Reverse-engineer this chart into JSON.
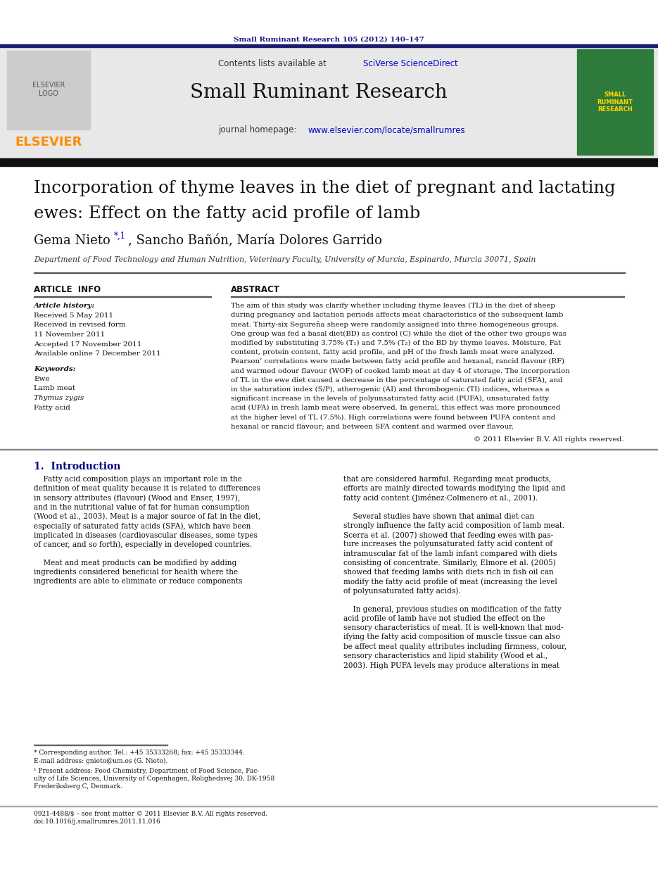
{
  "journal_citation": "Small Ruminant Research 105 (2012) 140–147",
  "journal_name": "Small Ruminant Research",
  "elsevier_text": "ELSEVIER",
  "article_title_line1": "Incorporation of thyme leaves in the diet of pregnant and lactating",
  "article_title_line2": "ewes: Effect on the fatty acid profile of lamb",
  "article_history_label": "Article history:",
  "received_1": "Received 5 May 2011",
  "received_revised": "Received in revised form",
  "revised_date": "11 November 2011",
  "accepted": "Accepted 17 November 2011",
  "available": "Available online 7 December 2011",
  "keywords_label": "Keywords:",
  "keyword_1": "Ewe",
  "keyword_2": "Lamb meat",
  "keyword_3": "Thymus zygis",
  "keyword_4": "Fatty acid",
  "copyright_text": "© 2011 Elsevier B.V. All rights reserved.",
  "intro_header": "1.  Introduction",
  "footnote_star": "* Corresponding author. Tel.: +45 35333268; fax: +45 35333344.",
  "footnote_email": "E-mail address: gnieto@um.es (G. Nieto).",
  "footnote_1a": "¹ Present address: Food Chemistry, Department of Food Science, Fac-",
  "footnote_1b": "ulty of Life Sciences, University of Copenhagen, Rolighedsvej 30, DK-1958",
  "footnote_1c": "Frederiksberg C, Denmark.",
  "footer_left": "0921-4488/$ – see front matter © 2011 Elsevier B.V. All rights reserved.",
  "footer_doi": "doi:10.1016/j.smallrumres.2011.11.016",
  "affiliation": "Department of Food Technology and Human Nutrition, Veterinary Faculty, University of Murcia, Espinardo, Murcia 30071, Spain",
  "abstract_lines": [
    "The aim of this study was clarify whether including thyme leaves (TL) in the diet of sheep",
    "during pregnancy and lactation periods affects meat characteristics of the subsequent lamb",
    "meat. Thirty-six Segureña sheep were randomly assigned into three homogeneous groups.",
    "One group was fed a basal diet(BD) as control (C) while the diet of the other two groups was",
    "modified by substituting 3.75% (T₁) and 7.5% (T₂) of the BD by thyme leaves. Moisture, Fat",
    "content, protein content, fatty acid profile, and pH of the fresh lamb meat were analyzed.",
    "Pearson’ correlations were made between fatty acid profile and hexanal, rancid flavour (RF)",
    "and warmed odour flavour (WOF) of cooked lamb meat at day 4 of storage. The incorporation",
    "of TL in the ewe diet caused a decrease in the percentage of saturated fatty acid (SFA), and",
    "in the saturation index (S/P), atherogenic (AI) and thrombogenic (TI) indices, whereas a",
    "significant increase in the levels of polyunsaturated fatty acid (PUFA), unsaturated fatty",
    "acid (UFA) in fresh lamb meat were observed. In general, this effect was more pronounced",
    "at the higher level of TL (7.5%). High correlations were found between PUFA content and",
    "hexanal or rancid flavour; and between SFA content and warmed over flavour."
  ],
  "intro_col1_lines": [
    "    Fatty acid composition plays an important role in the",
    "definition of meat quality because it is related to differences",
    "in sensory attributes (flavour) (Wood and Enser, 1997),",
    "and in the nutritional value of fat for human consumption",
    "(Wood et al., 2003). Meat is a major source of fat in the diet,",
    "especially of saturated fatty acids (SFA), which have been",
    "implicated in diseases (cardiovascular diseases, some types",
    "of cancer, and so forth), especially in developed countries.",
    "",
    "    Meat and meat products can be modified by adding",
    "ingredients considered beneficial for health where the",
    "ingredients are able to eliminate or reduce components"
  ],
  "intro_col2_lines": [
    "that are considered harmful. Regarding meat products,",
    "efforts are mainly directed towards modifying the lipid and",
    "fatty acid content (Jiménez-Colmenero et al., 2001).",
    "",
    "    Several studies have shown that animal diet can",
    "strongly influence the fatty acid composition of lamb meat.",
    "Scerra et al. (2007) showed that feeding ewes with pas-",
    "ture increases the polyunsaturated fatty acid content of",
    "intramuscular fat of the lamb infant compared with diets",
    "consisting of concentrate. Similarly, Elmore et al. (2005)",
    "showed that feeding lambs with diets rich in fish oil can",
    "modify the fatty acid profile of meat (increasing the level",
    "of polyunsaturated fatty acids).",
    "",
    "    In general, previous studies on modification of the fatty",
    "acid profile of lamb have not studied the effect on the",
    "sensory characteristics of meat. It is well-known that mod-",
    "ifying the fatty acid composition of muscle tissue can also",
    "be affect meat quality attributes including firmness, colour,",
    "sensory characteristics and lipid stability (Wood et al.,",
    "2003). High PUFA levels may produce alterations in meat"
  ],
  "bg_color": "#ffffff",
  "orange": "#FF8C00",
  "citation_color": "#1a1a8c",
  "link_color": "#0000CD",
  "navy": "#1a1a6e",
  "header_gray": "#e8e8e8",
  "cover_green": "#2d7a3a"
}
